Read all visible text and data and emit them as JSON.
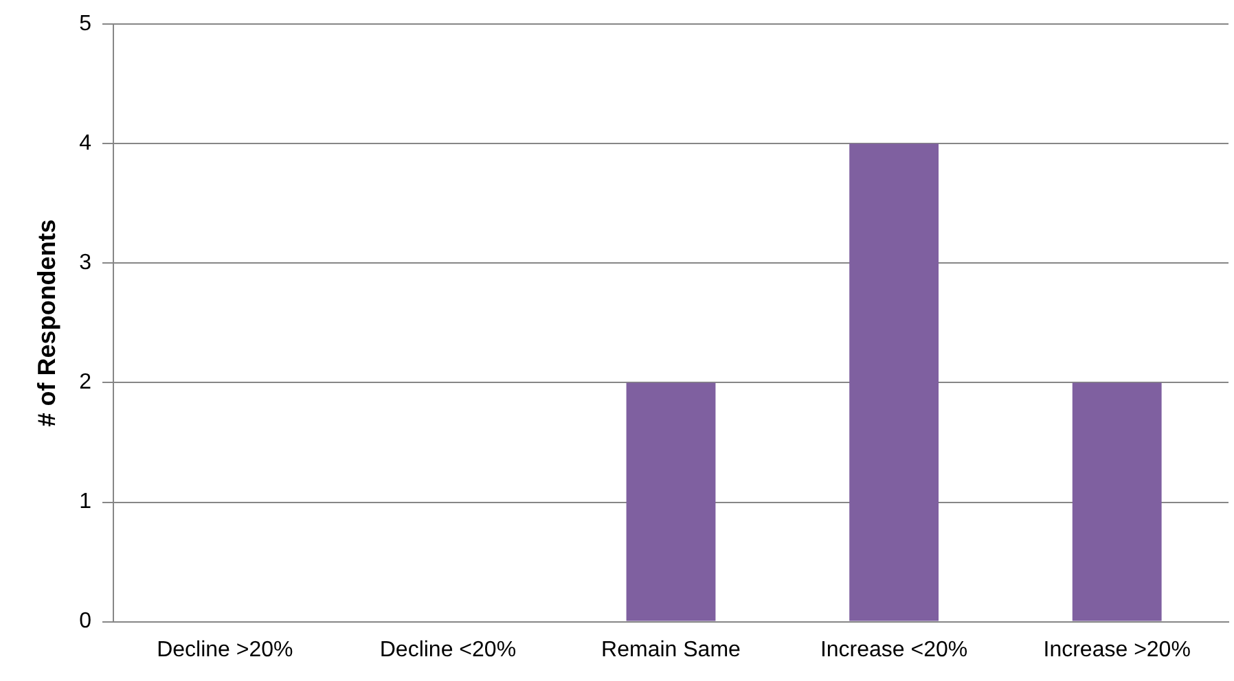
{
  "chart_data": {
    "type": "bar",
    "ylabel": "# of Respondents",
    "categories": [
      "Decline >20%",
      "Decline <20%",
      "Remain Same",
      "Increase <20%",
      "Increase >20%"
    ],
    "values": [
      0,
      0,
      2,
      4,
      2
    ],
    "color": "#7f60a0",
    "ylim": [
      0,
      5
    ],
    "yticks": [
      0,
      1,
      2,
      3,
      4,
      5
    ],
    "grid": "y"
  }
}
